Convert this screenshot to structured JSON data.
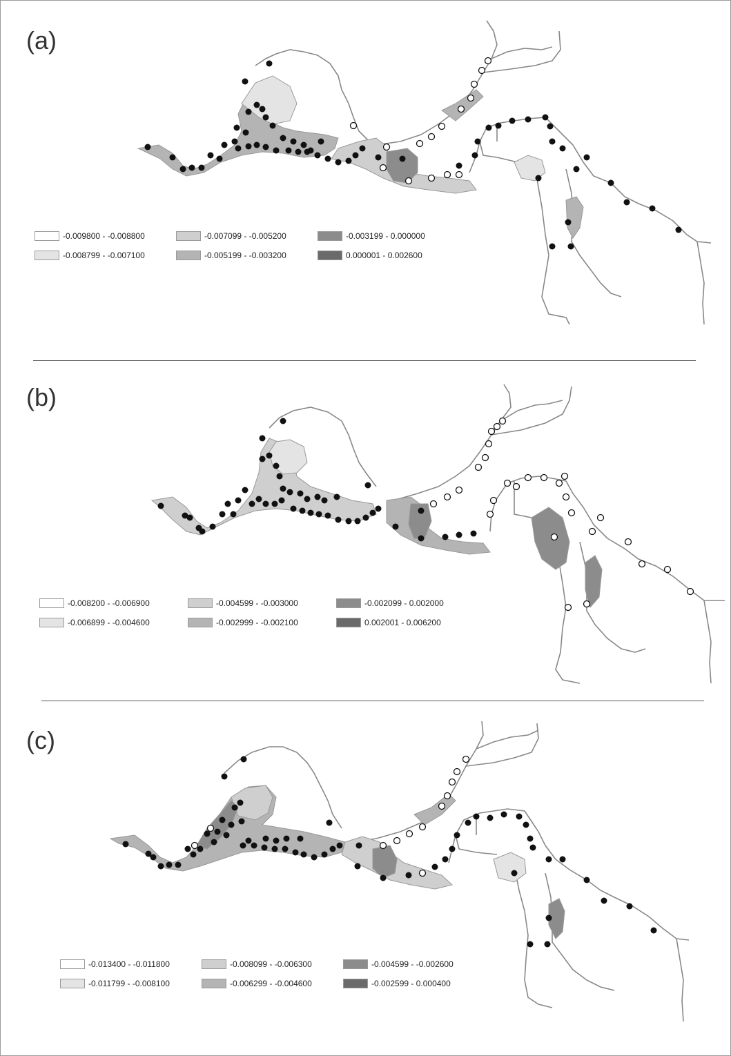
{
  "panels": [
    {
      "label": "(a)",
      "legend": [
        {
          "text": "-0.009800 - -0.008800",
          "color": "#ffffff"
        },
        {
          "text": "-0.008799 - -0.007100",
          "color": "#e4e4e4"
        },
        {
          "text": "-0.007099 - -0.005200",
          "color": "#cfcfcf"
        },
        {
          "text": "-0.005199 - -0.003200",
          "color": "#b4b4b4"
        },
        {
          "text": "-0.003199 - 0.000000",
          "color": "#8c8c8c"
        },
        {
          "text": "0.000001 - 0.002600",
          "color": "#6a6a6a"
        }
      ]
    },
    {
      "label": "(b)",
      "legend": [
        {
          "text": "-0.008200 - -0.006900",
          "color": "#ffffff"
        },
        {
          "text": "-0.006899 - -0.004600",
          "color": "#e4e4e4"
        },
        {
          "text": "-0.004599 - -0.003000",
          "color": "#cfcfcf"
        },
        {
          "text": "-0.002999 - -0.002100",
          "color": "#b4b4b4"
        },
        {
          "text": "-0.002099 - 0.002000",
          "color": "#8c8c8c"
        },
        {
          "text": "0.002001 - 0.006200",
          "color": "#6a6a6a"
        }
      ]
    },
    {
      "label": "(c)",
      "legend": [
        {
          "text": "-0.013400 - -0.011800",
          "color": "#ffffff"
        },
        {
          "text": "-0.011799 - -0.008100",
          "color": "#e4e4e4"
        },
        {
          "text": "-0.008099 - -0.006300",
          "color": "#cfcfcf"
        },
        {
          "text": "-0.006299 - -0.004600",
          "color": "#b4b4b4"
        },
        {
          "text": "-0.004599 - -0.002600",
          "color": "#8c8c8c"
        },
        {
          "text": "-0.002599 - 0.000400",
          "color": "#6a6a6a"
        }
      ]
    }
  ],
  "point_colors": {
    "black": "#111111",
    "white": "#ffffff"
  }
}
